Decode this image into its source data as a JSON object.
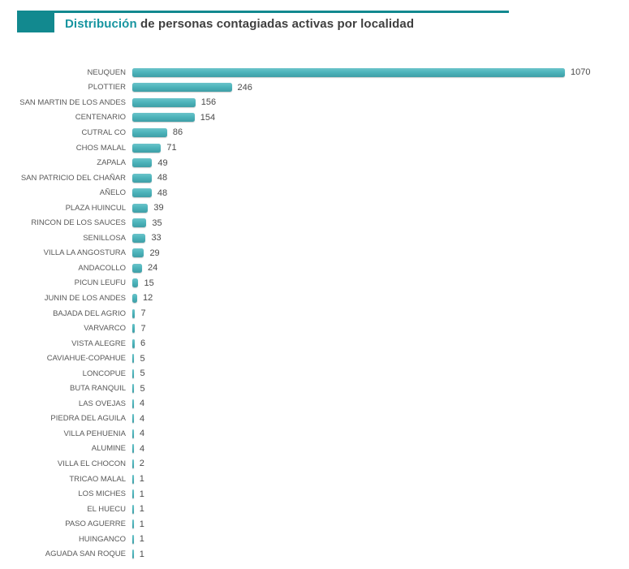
{
  "header": {
    "title_highlight": "Distribución",
    "title_rest": " de personas contagiadas activas por localidad",
    "accent_color": "#12898F",
    "highlight_text_color": "#1795A0"
  },
  "chart_data": {
    "type": "bar",
    "orientation": "horizontal",
    "title": "Distribución de personas contagiadas activas por localidad",
    "xlabel": "",
    "ylabel": "",
    "xlim": [
      0,
      1100
    ],
    "grid": false,
    "legend": false,
    "data_labels": true,
    "bar_color": "#4DB4BB",
    "label_color": "#595959",
    "value_label_color": "#4A4A4A",
    "categories": [
      "NEUQUEN",
      "PLOTTIER",
      "SAN MARTIN DE LOS ANDES",
      "CENTENARIO",
      "CUTRAL CO",
      "CHOS MALAL",
      "ZAPALA",
      "SAN PATRICIO DEL CHAÑAR",
      "AÑELO",
      "PLAZA HUINCUL",
      "RINCON DE LOS SAUCES",
      "SENILLOSA",
      "VILLA LA ANGOSTURA",
      "ANDACOLLO",
      "PICUN LEUFU",
      "JUNIN DE LOS ANDES",
      "BAJADA DEL AGRIO",
      "VARVARCO",
      "VISTA ALEGRE",
      "CAVIAHUE-COPAHUE",
      "LONCOPUE",
      "BUTA RANQUIL",
      "LAS OVEJAS",
      "PIEDRA DEL AGUILA",
      "VILLA PEHUENIA",
      "ALUMINE",
      "VILLA EL CHOCON",
      "TRICAO MALAL",
      "LOS MICHES",
      "EL HUECU",
      "PASO AGUERRE",
      "HUINGANCO",
      "AGUADA SAN ROQUE"
    ],
    "values": [
      1070,
      246,
      156,
      154,
      86,
      71,
      49,
      48,
      48,
      39,
      35,
      33,
      29,
      24,
      15,
      12,
      7,
      7,
      6,
      5,
      5,
      5,
      4,
      4,
      4,
      4,
      2,
      1,
      1,
      1,
      1,
      1,
      1
    ]
  }
}
